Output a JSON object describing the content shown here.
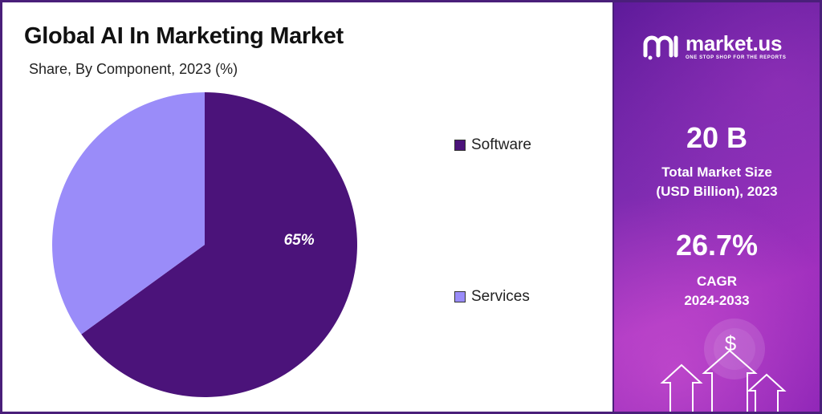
{
  "header": {
    "title": "Global AI In Marketing Market",
    "subtitle": "Share, By Component, 2023 (%)"
  },
  "chart_data": {
    "type": "pie",
    "title": "Global AI In Marketing Market",
    "subtitle": "Share, By Component, 2023 (%)",
    "categories": [
      "Software",
      "Services"
    ],
    "values": [
      65,
      35
    ],
    "data_labels": [
      "65%",
      ""
    ],
    "colors": [
      "#4b137a",
      "#9a8cf9"
    ],
    "legend_position": "right"
  },
  "sidebar": {
    "brand_name": "market.us",
    "brand_tagline": "ONE STOP SHOP FOR THE REPORTS",
    "market_size_value": "20 B",
    "market_size_label_line1": "Total Market Size",
    "market_size_label_line2": "(USD Billion), 2023",
    "cagr_value": "26.7%",
    "cagr_label_line1": "CAGR",
    "cagr_label_line2": "2024-2033",
    "dollar_symbol": "$"
  }
}
